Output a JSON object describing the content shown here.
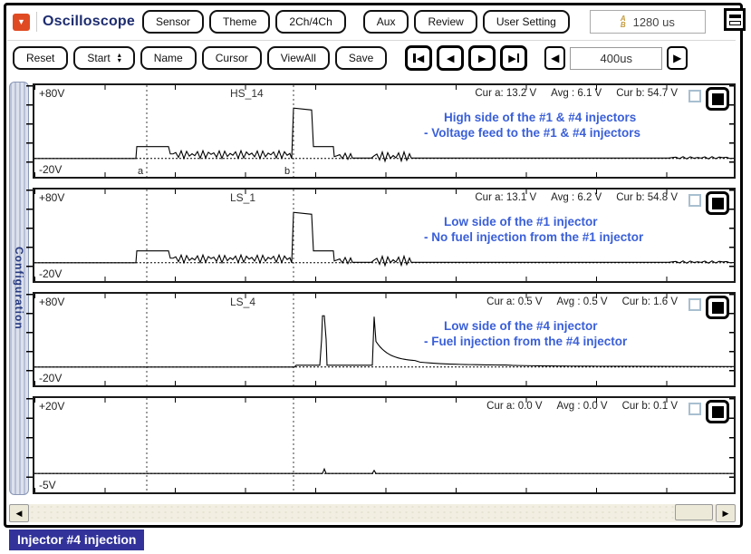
{
  "header": {
    "dropdown_icon": "▼",
    "title": "Oscilloscope",
    "buttons": [
      "Sensor",
      "Theme",
      "2Ch/4Ch",
      "Aux",
      "Review",
      "User Setting"
    ],
    "time_display": {
      "icon_top": "A",
      "icon_bottom": "B",
      "value": "1280 us"
    }
  },
  "controls": {
    "buttons": [
      "Reset",
      "Start",
      "Name",
      "Cursor",
      "ViewAll",
      "Save"
    ],
    "spinner_up": "▴",
    "spinner_down": "▾",
    "nav": {
      "first": "◀",
      "prev": "◀",
      "next": "▶",
      "last": "▶"
    },
    "timebase": {
      "dec": "◀",
      "value": "400us",
      "inc": "▶"
    }
  },
  "sidebar": {
    "label": "Configuration"
  },
  "scope": {
    "cursors": [
      124,
      286
    ],
    "cursor_a_label": "a",
    "cursor_b_label": "b"
  },
  "channels": [
    {
      "name": "HS_14",
      "v_top_label": "+80V",
      "v_bottom_label": "-20V",
      "v_range": [
        -20,
        80
      ],
      "measurements": {
        "cur_a_label": "Cur a:",
        "cur_a": "13.2 V",
        "avg_label": "Avg :",
        "avg": "6.1 V",
        "cur_b_label": "Cur b:",
        "cur_b": "54.7 V"
      },
      "annotation": [
        "High side of the #1 & #4 injectors",
        "- Voltage feed to the #1 & #4 injectors"
      ],
      "trace": [
        [
          "M",
          0,
          0
        ],
        [
          "L",
          112,
          0
        ],
        [
          "L",
          113,
          13
        ],
        [
          "L",
          148,
          13
        ],
        [
          "L",
          150,
          5
        ],
        [
          "N",
          282,
          5,
          5,
          3
        ],
        [
          "L",
          284,
          0
        ],
        [
          "L",
          286,
          55
        ],
        [
          "L",
          306,
          53
        ],
        [
          "L",
          308,
          13
        ],
        [
          "L",
          330,
          13
        ],
        [
          "L",
          331,
          2
        ],
        [
          "N",
          349,
          3,
          4,
          3
        ],
        [
          "L",
          351,
          0.5
        ],
        [
          "L",
          372,
          0.5
        ],
        [
          "N",
          414,
          3,
          6,
          3
        ],
        [
          "L",
          416,
          0.5
        ],
        [
          "L",
          700,
          0.5
        ],
        [
          "N",
          768,
          1,
          1.5,
          4
        ],
        [
          "L",
          776,
          0.5
        ]
      ]
    },
    {
      "name": "LS_1",
      "v_top_label": "+80V",
      "v_bottom_label": "-20V",
      "v_range": [
        -20,
        80
      ],
      "measurements": {
        "cur_a_label": "Cur a:",
        "cur_a": "13.1 V",
        "avg_label": "Avg :",
        "avg": "6.2 V",
        "cur_b_label": "Cur b:",
        "cur_b": "54.8 V"
      },
      "annotation": [
        "Low side of the #1 injector",
        "- No fuel injection from the #1 injector"
      ],
      "trace": [
        [
          "M",
          0,
          0
        ],
        [
          "L",
          112,
          0
        ],
        [
          "L",
          113,
          13
        ],
        [
          "L",
          148,
          13
        ],
        [
          "L",
          150,
          5
        ],
        [
          "N",
          282,
          5,
          5,
          3
        ],
        [
          "L",
          284,
          0
        ],
        [
          "L",
          286,
          55
        ],
        [
          "L",
          306,
          53
        ],
        [
          "L",
          308,
          13
        ],
        [
          "L",
          330,
          13
        ],
        [
          "L",
          331,
          2
        ],
        [
          "N",
          349,
          3,
          4,
          3
        ],
        [
          "L",
          351,
          0.5
        ],
        [
          "L",
          372,
          0.5
        ],
        [
          "N",
          414,
          3,
          6,
          3
        ],
        [
          "L",
          416,
          0.5
        ],
        [
          "L",
          700,
          0.5
        ],
        [
          "N",
          768,
          1,
          1.5,
          4
        ],
        [
          "L",
          776,
          0.5
        ]
      ]
    },
    {
      "name": "LS_4",
      "v_top_label": "+80V",
      "v_bottom_label": "-20V",
      "v_range": [
        -20,
        80
      ],
      "measurements": {
        "cur_a_label": "Cur a:",
        "cur_a": "0.5 V",
        "avg_label": "Avg :",
        "avg": "0.5 V",
        "cur_b_label": "Cur b:",
        "cur_b": "1.6 V"
      },
      "annotation": [
        "Low side of the #4 injector",
        "- Fuel injection from the #4 injector"
      ],
      "trace": [
        [
          "M",
          0,
          0
        ],
        [
          "L",
          287,
          0
        ],
        [
          "L",
          289,
          2
        ],
        [
          "L",
          315,
          2
        ],
        [
          "L",
          317,
          30
        ],
        [
          "L",
          318,
          56
        ],
        [
          "L",
          320,
          56
        ],
        [
          "L",
          322,
          30
        ],
        [
          "L",
          323,
          2
        ],
        [
          "L",
          373,
          2
        ],
        [
          "L",
          375,
          55
        ],
        [
          "L",
          377,
          28
        ],
        [
          "D",
          420,
          28,
          6
        ],
        [
          "D",
          520,
          6,
          2
        ],
        [
          "D",
          650,
          2,
          0.8
        ],
        [
          "L",
          776,
          0.5
        ]
      ]
    },
    {
      "name": "",
      "v_top_label": "+20V",
      "v_bottom_label": "-5V",
      "v_range": [
        -5,
        20
      ],
      "measurements": {
        "cur_a_label": "Cur a:",
        "cur_a": "0.0 V",
        "avg_label": "Avg :",
        "avg": "0.0 V",
        "cur_b_label": "Cur b:",
        "cur_b": "0.1 V"
      },
      "annotation": [
        "",
        ""
      ],
      "trace": [
        [
          "M",
          0,
          0
        ],
        [
          "L",
          318,
          0
        ],
        [
          "L",
          320,
          1.2
        ],
        [
          "L",
          322,
          0
        ],
        [
          "L",
          373,
          0
        ],
        [
          "L",
          375,
          0.8
        ],
        [
          "L",
          377,
          0
        ],
        [
          "L",
          776,
          0
        ]
      ]
    }
  ],
  "footer": {
    "label": "Injector #4 injection"
  }
}
